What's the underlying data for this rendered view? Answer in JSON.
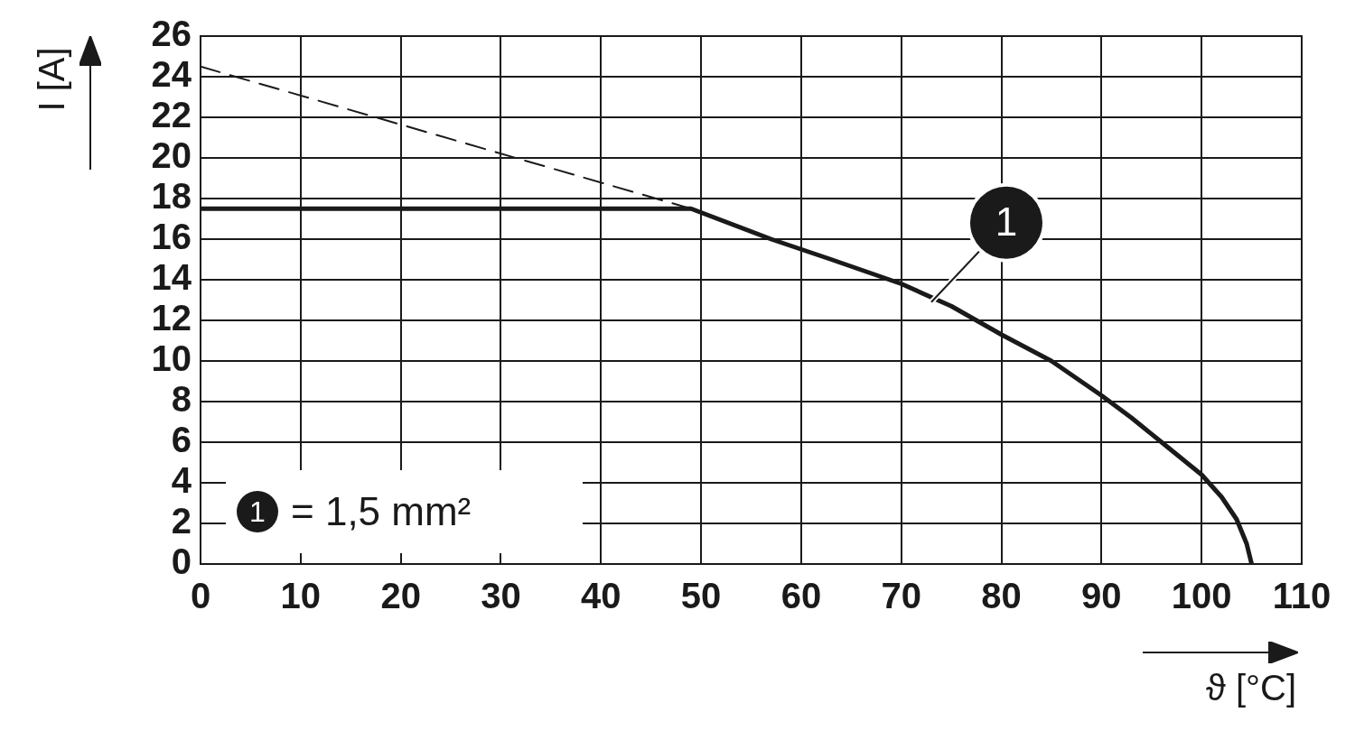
{
  "chart_data": {
    "type": "line",
    "xlabel": "ϑ [°C]",
    "ylabel": "I [A]",
    "xlim": [
      0,
      110
    ],
    "xticks": [
      0,
      10,
      20,
      30,
      40,
      50,
      60,
      70,
      80,
      90,
      100,
      110
    ],
    "ylim": [
      0,
      26
    ],
    "yticks": [
      0,
      2,
      4,
      6,
      8,
      10,
      12,
      14,
      16,
      18,
      20,
      22,
      24,
      26
    ],
    "grid": true,
    "marker": "none",
    "series": [
      {
        "color": "#1a1a1a",
        "line_style": "solid",
        "x": [
          0,
          49,
          57,
          63,
          70,
          75,
          80,
          85,
          90,
          93,
          96,
          98,
          100,
          102,
          103.5,
          104.5,
          105
        ],
        "values": [
          17.5,
          17.5,
          16,
          15,
          13.8,
          12.7,
          11.3,
          10,
          8.3,
          7.2,
          6,
          5.2,
          4.4,
          3.3,
          2.2,
          1,
          0
        ]
      },
      {
        "color": "#1a1a1a",
        "line_style": "dashed",
        "x": [
          0,
          49
        ],
        "values": [
          24.5,
          17.5
        ]
      }
    ],
    "annotations": [
      {
        "text": "1",
        "x": 73,
        "y": 12.9
      },
      "= 1,5 mm²"
    ]
  }
}
